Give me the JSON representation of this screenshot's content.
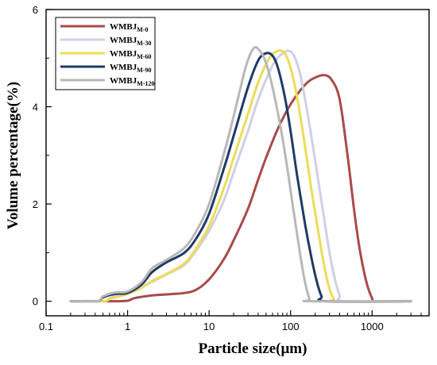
{
  "chart_data": {
    "type": "line",
    "title": "",
    "xlabel": "Particle size(μm)",
    "ylabel": "Volume percentage(%)",
    "x_scale": "log",
    "xlim": [
      0.1,
      5000
    ],
    "ylim": [
      -0.3,
      6
    ],
    "x_ticks": [
      {
        "value": 0.1,
        "label": "0.1"
      },
      {
        "value": 1,
        "label": "1"
      },
      {
        "value": 10,
        "label": "10"
      },
      {
        "value": 100,
        "label": "100"
      },
      {
        "value": 1000,
        "label": "1000"
      }
    ],
    "y_ticks": [
      {
        "value": 0,
        "label": "0"
      },
      {
        "value": 2,
        "label": "2"
      },
      {
        "value": 4,
        "label": "4"
      },
      {
        "value": 6,
        "label": "6"
      }
    ],
    "grid": false,
    "legend_position": "top-left",
    "series": [
      {
        "name": "WMBJ",
        "sub": "M-0",
        "color": "#a94a4a",
        "points": [
          [
            0.2,
            0
          ],
          [
            0.7,
            0
          ],
          [
            1.0,
            0.01
          ],
          [
            1.2,
            0.06
          ],
          [
            2,
            0.12
          ],
          [
            3,
            0.14
          ],
          [
            5,
            0.17
          ],
          [
            7,
            0.24
          ],
          [
            10,
            0.45
          ],
          [
            15,
            0.85
          ],
          [
            20,
            1.25
          ],
          [
            30,
            1.9
          ],
          [
            40,
            2.5
          ],
          [
            50,
            2.95
          ],
          [
            70,
            3.55
          ],
          [
            100,
            4.05
          ],
          [
            150,
            4.45
          ],
          [
            200,
            4.6
          ],
          [
            260,
            4.65
          ],
          [
            320,
            4.55
          ],
          [
            400,
            4.15
          ],
          [
            500,
            3.0
          ],
          [
            600,
            1.9
          ],
          [
            700,
            1.1
          ],
          [
            850,
            0.4
          ],
          [
            1000,
            0.06
          ],
          [
            1100,
            0
          ],
          [
            3000,
            0
          ]
        ]
      },
      {
        "name": "WMBJ",
        "sub": "M-30",
        "color": "#cfcfe6",
        "points": [
          [
            0.2,
            0
          ],
          [
            0.5,
            0
          ],
          [
            0.6,
            0.05
          ],
          [
            0.7,
            0.12
          ],
          [
            1,
            0.16
          ],
          [
            2,
            0.4
          ],
          [
            3,
            0.55
          ],
          [
            5,
            0.75
          ],
          [
            7,
            1.05
          ],
          [
            10,
            1.45
          ],
          [
            15,
            2.05
          ],
          [
            20,
            2.65
          ],
          [
            30,
            3.5
          ],
          [
            40,
            4.15
          ],
          [
            60,
            4.85
          ],
          [
            80,
            5.1
          ],
          [
            95,
            5.15
          ],
          [
            110,
            5.05
          ],
          [
            130,
            4.7
          ],
          [
            160,
            3.9
          ],
          [
            200,
            2.9
          ],
          [
            250,
            1.85
          ],
          [
            300,
            1.0
          ],
          [
            350,
            0.45
          ],
          [
            400,
            0.12
          ],
          [
            450,
            0
          ],
          [
            3000,
            0
          ]
        ]
      },
      {
        "name": "WMBJ",
        "sub": "M-60",
        "color": "#ecdc5a",
        "points": [
          [
            0.2,
            0
          ],
          [
            0.5,
            0
          ],
          [
            0.6,
            0.05
          ],
          [
            0.8,
            0.1
          ],
          [
            1,
            0.15
          ],
          [
            1.5,
            0.28
          ],
          [
            2,
            0.42
          ],
          [
            3,
            0.56
          ],
          [
            5,
            0.78
          ],
          [
            7,
            1.1
          ],
          [
            10,
            1.55
          ],
          [
            15,
            2.3
          ],
          [
            20,
            2.95
          ],
          [
            30,
            3.85
          ],
          [
            40,
            4.5
          ],
          [
            55,
            5.0
          ],
          [
            70,
            5.15
          ],
          [
            85,
            5.1
          ],
          [
            100,
            4.8
          ],
          [
            120,
            4.2
          ],
          [
            150,
            3.2
          ],
          [
            180,
            2.3
          ],
          [
            220,
            1.4
          ],
          [
            260,
            0.7
          ],
          [
            300,
            0.25
          ],
          [
            340,
            0.05
          ],
          [
            360,
            0
          ],
          [
            3000,
            0
          ]
        ]
      },
      {
        "name": "WMBJ",
        "sub": "M-90",
        "color": "#1f3a66",
        "points": [
          [
            0.2,
            0
          ],
          [
            0.42,
            0
          ],
          [
            0.5,
            0.08
          ],
          [
            0.7,
            0.15
          ],
          [
            1,
            0.17
          ],
          [
            1.5,
            0.35
          ],
          [
            2,
            0.6
          ],
          [
            3,
            0.8
          ],
          [
            5,
            1.0
          ],
          [
            7,
            1.3
          ],
          [
            10,
            1.8
          ],
          [
            15,
            2.7
          ],
          [
            20,
            3.4
          ],
          [
            30,
            4.4
          ],
          [
            40,
            4.95
          ],
          [
            50,
            5.1
          ],
          [
            60,
            5.05
          ],
          [
            70,
            4.8
          ],
          [
            85,
            4.2
          ],
          [
            100,
            3.5
          ],
          [
            120,
            2.6
          ],
          [
            150,
            1.6
          ],
          [
            180,
            0.9
          ],
          [
            210,
            0.4
          ],
          [
            240,
            0.1
          ],
          [
            270,
            0
          ],
          [
            3000,
            0
          ]
        ]
      },
      {
        "name": "WMBJ",
        "sub": "M-120",
        "color": "#b8b8b8",
        "points": [
          [
            0.2,
            0
          ],
          [
            0.42,
            0
          ],
          [
            0.5,
            0.1
          ],
          [
            0.7,
            0.18
          ],
          [
            1,
            0.2
          ],
          [
            1.5,
            0.4
          ],
          [
            2,
            0.68
          ],
          [
            3,
            0.85
          ],
          [
            5,
            1.1
          ],
          [
            7,
            1.45
          ],
          [
            10,
            2.0
          ],
          [
            15,
            3.0
          ],
          [
            20,
            3.8
          ],
          [
            28,
            4.8
          ],
          [
            35,
            5.2
          ],
          [
            42,
            5.15
          ],
          [
            50,
            4.9
          ],
          [
            60,
            4.4
          ],
          [
            75,
            3.6
          ],
          [
            90,
            2.8
          ],
          [
            110,
            1.8
          ],
          [
            130,
            1.0
          ],
          [
            150,
            0.4
          ],
          [
            170,
            0.05
          ],
          [
            180,
            0
          ],
          [
            3000,
            0
          ]
        ]
      }
    ]
  }
}
